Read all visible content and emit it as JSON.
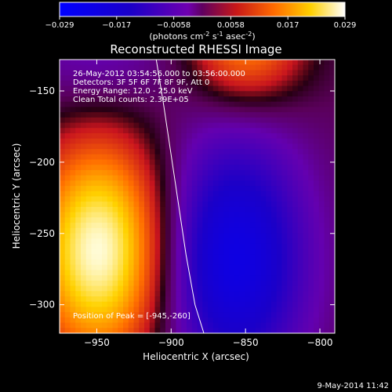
{
  "colorbar": {
    "ticks": [
      "-0.029",
      "-0.017",
      "-0.0058",
      "0.0058",
      "0.017",
      "0.029"
    ],
    "unit_main": "(photons cm",
    "unit_exp1": "-2",
    "unit_mid": " s",
    "unit_exp2": "-1",
    "unit_mid2": " asec",
    "unit_exp3": "-2",
    "unit_end": ")",
    "range": [
      -0.029,
      0.029
    ]
  },
  "footer": {
    "timestamp": "9-May-2014 11:42"
  },
  "chart_data": {
    "type": "heatmap",
    "title": "Reconstructed RHESSI Image",
    "xlabel": "Heliocentric X (arcsec)",
    "ylabel": "Heliocentric Y (arcsec)",
    "xlim": [
      -975,
      -790
    ],
    "ylim": [
      -320,
      -128
    ],
    "xticks": [
      -950,
      -900,
      -850,
      -800
    ],
    "xtick_labels": [
      "−950",
      "−900",
      "−850",
      "−800"
    ],
    "yticks": [
      -150,
      -200,
      -250,
      -300
    ],
    "ytick_labels": [
      "−150",
      "−200",
      "−250",
      "−300"
    ],
    "annotations": [
      "26-May-2012 03:54:56.000 to 03:56:00.000",
      "Detectors: 3F 5F 6F 7F 8F 9F, Att 0",
      "Energy Range: 12.0 - 25.0 keV",
      "Clean    Total counts: 2.39E+05"
    ],
    "peak_label": "Position of Peak = [-945,-260]",
    "peak": {
      "x": -945,
      "y": -260
    },
    "limb_points": [
      [
        -910,
        -128
      ],
      [
        -905,
        -160
      ],
      [
        -900,
        -195
      ],
      [
        -895,
        -230
      ],
      [
        -890,
        -265
      ],
      [
        -884,
        -300
      ],
      [
        -878,
        -320
      ]
    ],
    "sources": [
      {
        "x": -948,
        "y": -262,
        "sx": 32,
        "sy": 55,
        "amp": 1.0
      },
      {
        "x": -850,
        "y": -120,
        "sx": 28,
        "sy": 28,
        "amp": 0.55
      },
      {
        "x": -858,
        "y": -268,
        "sx": 34,
        "sy": 60,
        "amp": -0.75
      },
      {
        "x": -950,
        "y": -128,
        "sx": 40,
        "sy": 28,
        "amp": -0.2
      }
    ]
  }
}
